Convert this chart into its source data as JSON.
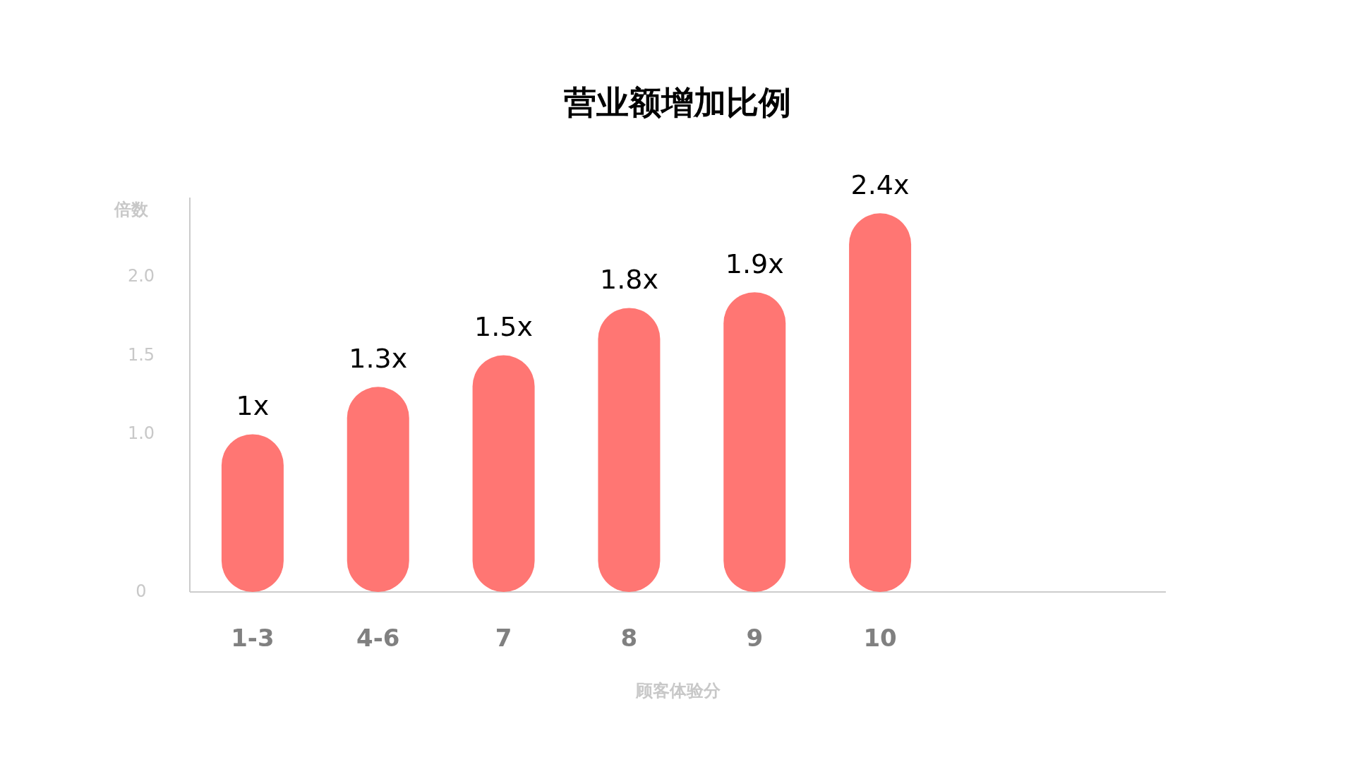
{
  "chart_data": {
    "type": "bar",
    "title": "营业额增加比例",
    "xlabel": "顾客体验分",
    "ylabel": "倍数",
    "categories": [
      "1-3",
      "4-6",
      "7",
      "8",
      "9",
      "10"
    ],
    "values": [
      1,
      1.3,
      1.5,
      1.8,
      1.9,
      2.4
    ],
    "value_labels": [
      "1x",
      "1.3x",
      "1.5x",
      "1.8x",
      "1.9x",
      "2.4x"
    ],
    "color": "#ff7673",
    "ylim": [
      0,
      2.5
    ],
    "yticks": [
      0,
      {
        "value": 1,
        "label": "1.0"
      },
      {
        "value": 1.5,
        "label": "1.5"
      },
      {
        "value": 2,
        "label": "2.0"
      }
    ]
  }
}
